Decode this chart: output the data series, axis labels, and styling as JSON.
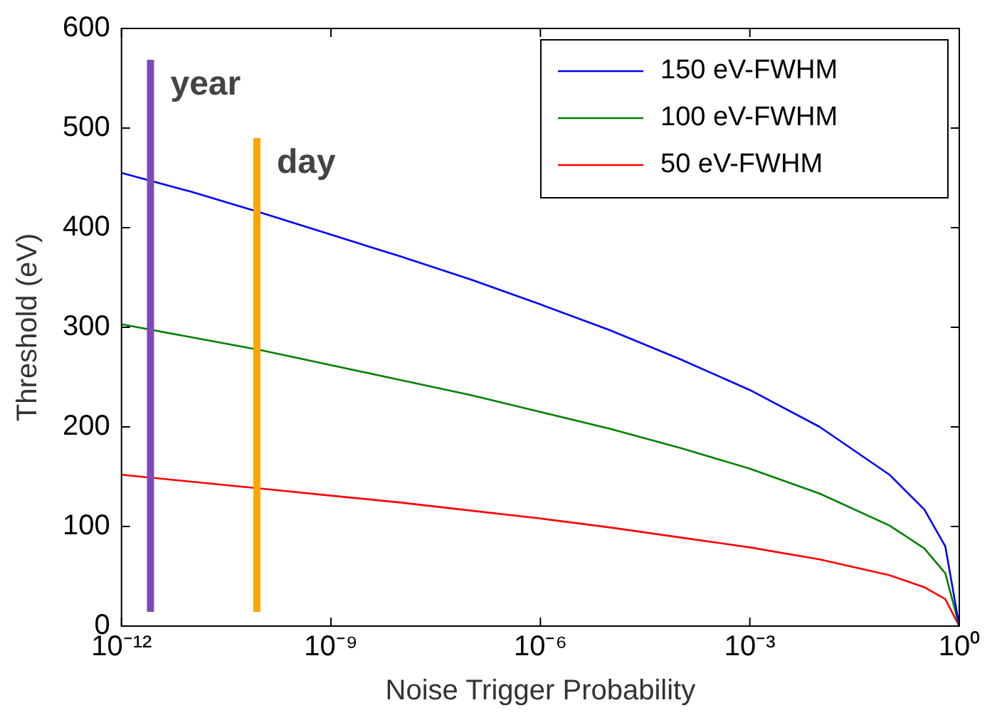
{
  "chart_data": {
    "type": "line",
    "xlabel": "Noise Trigger Probability",
    "ylabel": "Threshold (eV)",
    "x": [
      1e-12,
      1e-11,
      1e-10,
      1e-09,
      1e-08,
      1e-07,
      1e-06,
      1e-05,
      0.0001,
      0.001,
      0.01,
      0.1,
      0.316,
      0.631,
      1
    ],
    "series": [
      {
        "name": "150 eV-FWHM",
        "color": "#0000ff",
        "values": [
          455,
          436,
          415,
          393,
          371,
          348,
          323,
          297,
          268,
          237,
          200,
          152,
          117,
          80,
          0
        ]
      },
      {
        "name": "100 eV-FWHM",
        "color": "#008000",
        "values": [
          303,
          290,
          277,
          262,
          247,
          232,
          215,
          198,
          179,
          158,
          133,
          101,
          78,
          53,
          0
        ]
      },
      {
        "name": "50 eV-FWHM",
        "color": "#ff0000",
        "values": [
          152,
          145,
          138,
          131,
          124,
          116,
          108,
          99,
          89,
          79,
          67,
          51,
          39,
          27,
          0
        ]
      }
    ],
    "log": "x",
    "xlim": [
      1e-12,
      1
    ],
    "xticks": [
      {
        "value": 1e-12,
        "label": "10⁻¹²"
      },
      {
        "value": 1e-09,
        "label": "10⁻⁹"
      },
      {
        "value": 1e-06,
        "label": "10⁻⁶"
      },
      {
        "value": 0.001,
        "label": "10⁻³"
      },
      {
        "value": 1,
        "label": "10⁰"
      }
    ],
    "ylim": [
      0,
      600
    ],
    "yticks": [
      0,
      100,
      200,
      300,
      400,
      500,
      600
    ],
    "ref_lines": [
      {
        "axis": "x",
        "value": 2.6e-12,
        "label": "year",
        "color": "#7d4bb8"
      },
      {
        "axis": "x",
        "value": 8.7e-11,
        "label": "day",
        "color": "#ffa500"
      }
    ],
    "grid": false,
    "legend": "top right",
    "marker": "none",
    "line_style": "solid"
  }
}
